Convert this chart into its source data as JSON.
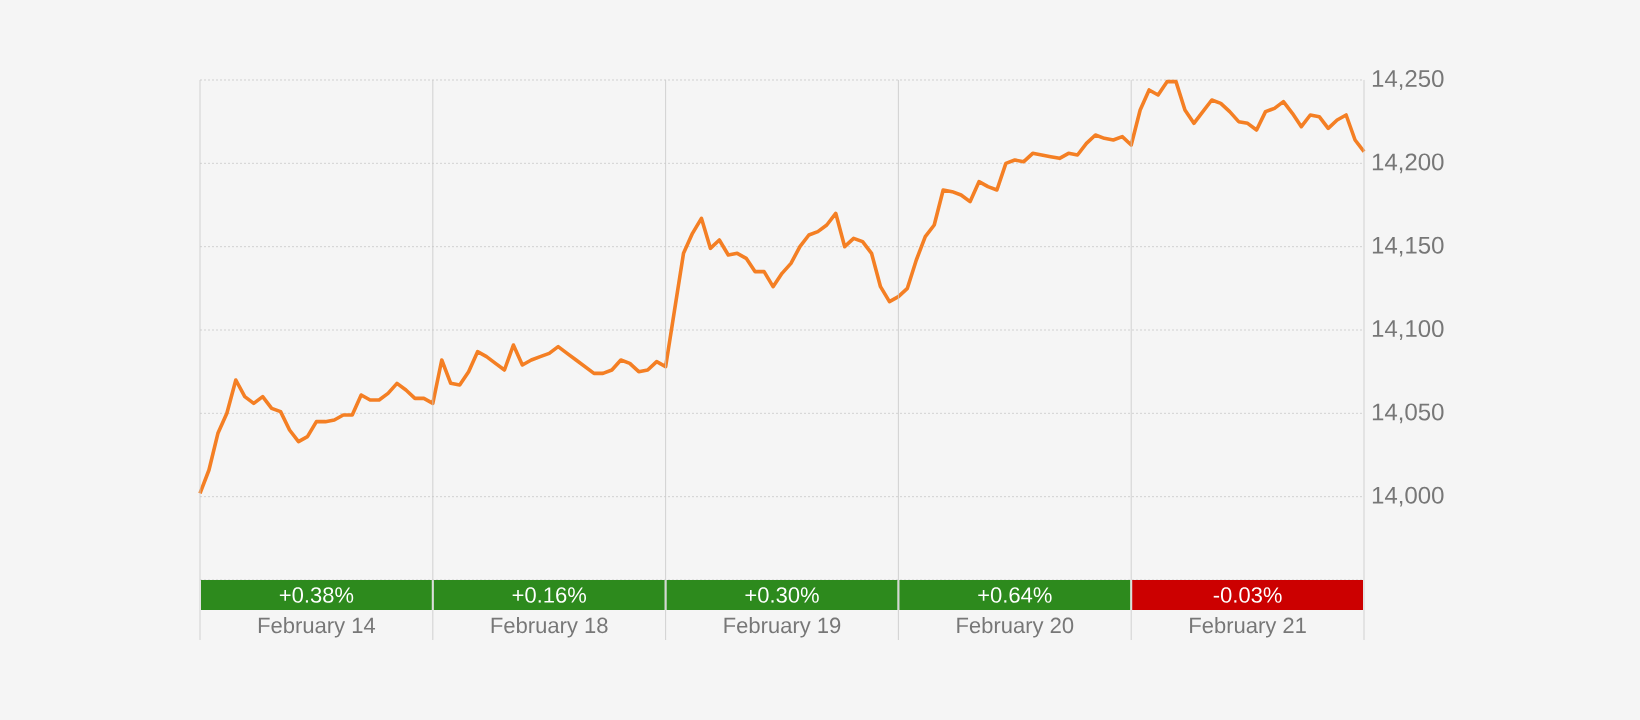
{
  "chart_data": [
    {
      "type": "line",
      "grid": "y",
      "tick_labels": "y",
      "categories": [
        null,
        null,
        null,
        null,
        null,
        null,
        null,
        null,
        null,
        null,
        null,
        null,
        null,
        null,
        null,
        null,
        null,
        null,
        null,
        null,
        null,
        null,
        null,
        null,
        null,
        null,
        null,
        null,
        null,
        null,
        null,
        null,
        null,
        null,
        null,
        null,
        null,
        null,
        null,
        null,
        null,
        null,
        null,
        null,
        null,
        null,
        null,
        null,
        null,
        null,
        null,
        null,
        null,
        null,
        null,
        null,
        null,
        null,
        null,
        null,
        null,
        null,
        null,
        null,
        null,
        null,
        null,
        null,
        null,
        null,
        null,
        null,
        null,
        null,
        null,
        null,
        null,
        null,
        null,
        null,
        null,
        null,
        null,
        null,
        null,
        null,
        null,
        null,
        null,
        null,
        null,
        null,
        null,
        null,
        null,
        null,
        null,
        null,
        null,
        null,
        null,
        null,
        null,
        null,
        null,
        null,
        null,
        null,
        null,
        null,
        null,
        null,
        null,
        null,
        null,
        null,
        null,
        null,
        null,
        null,
        null,
        null,
        null,
        null,
        null,
        null,
        null,
        null,
        null,
        null,
        null
      ],
      "ylim": [
        13950,
        14250
      ],
      "yticks": [
        {
          "value": 13950,
          "label": null
        },
        {
          "value": 14000,
          "label": "14,000"
        },
        {
          "value": 14050,
          "label": "14,050"
        },
        {
          "value": 14100,
          "label": "14,100"
        },
        {
          "value": 14150,
          "label": "14,150"
        },
        {
          "value": 14200,
          "label": "14,200"
        },
        {
          "value": 14250,
          "label": "14,250"
        }
      ],
      "series": [
        {
          "color": "#f47f24",
          "values": [
            14002,
            14016,
            14038,
            14050,
            14070,
            14060,
            14056,
            14060,
            14053,
            14051,
            14040,
            14033,
            14036,
            14045,
            14045,
            14046,
            14049,
            14049,
            14061,
            14058,
            14058,
            14062,
            14068,
            14064,
            14059,
            14059,
            14056,
            14082,
            14068,
            14067,
            14075,
            14087,
            14084,
            14080,
            14076,
            14091,
            14079,
            14082,
            14084,
            14086,
            14090,
            14086,
            14082,
            14078,
            14074,
            14074,
            14076,
            14082,
            14080,
            14075,
            14076,
            14081,
            14078,
            14112,
            14146,
            14158,
            14167,
            14149,
            14154,
            14145,
            14146,
            14143,
            14135,
            14135,
            14126,
            14134,
            14140,
            14150,
            14157,
            14159,
            14163,
            14170,
            14150,
            14155,
            14153,
            14146,
            14126,
            14117,
            14120,
            14125,
            14142,
            14156,
            14163,
            14184,
            14183,
            14181,
            14177,
            14189,
            14186,
            14184,
            14200,
            14202,
            14201,
            14206,
            14205,
            14204,
            14203,
            14206,
            14205,
            14212,
            14217,
            14215,
            14214,
            14216,
            14211,
            14232,
            14244,
            14241,
            14249,
            14249,
            14232,
            14224,
            14231,
            14238,
            14236,
            14231,
            14225,
            14224,
            14220,
            14231,
            14233,
            14237,
            14230,
            14222,
            14229,
            14228,
            14221,
            14226,
            14229,
            14214,
            14207
          ]
        }
      ]
    },
    {
      "type": "heatmap",
      "categories": [
        "February 14",
        "February 18",
        "February 19",
        "February 20",
        "February 21"
      ],
      "y_categories": [
        null
      ],
      "cells": [
        [
          0.38,
          0.16,
          0.3,
          0.64,
          -0.03
        ]
      ],
      "cell_labels": [
        [
          "+0.38%",
          "+0.16%",
          "+0.30%",
          "+0.64%",
          "-0.03%"
        ]
      ]
    }
  ]
}
